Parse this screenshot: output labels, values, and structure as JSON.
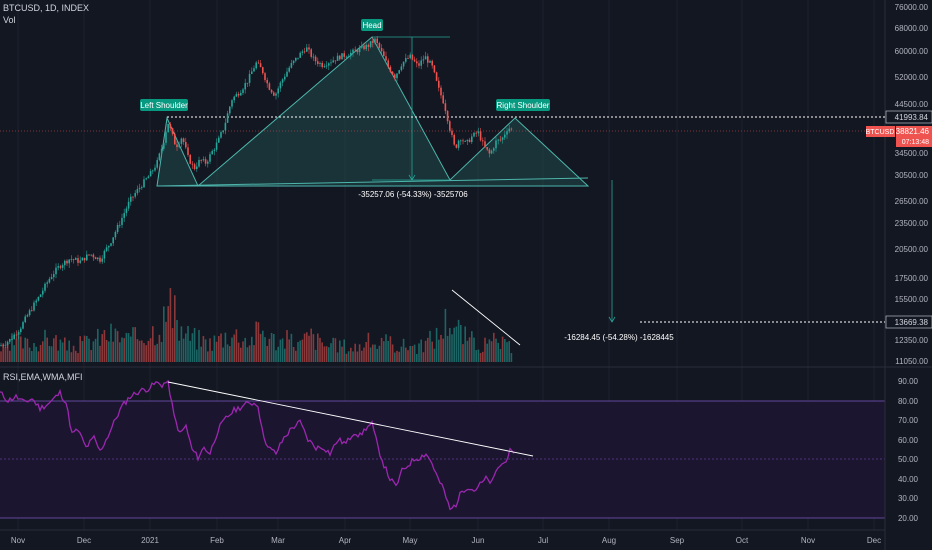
{
  "header": {
    "symbol_line": "BTCUSD, 1D, INDEX",
    "vol_label": "Vol",
    "rsi_label": "RSI,EMA,WMA,MFI"
  },
  "price_axis": {
    "ticks": [
      "76000.00",
      "68000.00",
      "60000.00",
      "52000.00",
      "44500.00",
      "34500.00",
      "30500.00",
      "26500.00",
      "23500.00",
      "20500.00",
      "17500.00",
      "15500.00",
      "12350.00",
      "11050.00"
    ],
    "level_high": "41993.84",
    "level_low": "13669.38",
    "symbol_tag": "BTCUSD",
    "last_price": "38821.46",
    "countdown": "07:13:48"
  },
  "rsi_axis": {
    "ticks": [
      "90.00",
      "80.00",
      "70.00",
      "60.00",
      "50.00",
      "40.00",
      "30.00",
      "20.00"
    ]
  },
  "time_axis": {
    "labels": [
      "Nov",
      "Dec",
      "2021",
      "Feb",
      "Mar",
      "Apr",
      "May",
      "Jun",
      "Jul",
      "Aug",
      "Sep",
      "Oct",
      "Nov",
      "Dec"
    ]
  },
  "annotations": {
    "left_shoulder": "Left Shoulder",
    "head": "Head",
    "right_shoulder": "Right Shoulder",
    "measure_top": "-35257.06 (-54.33%) -3525706",
    "measure_bottom": "-16284.45 (-54.28%) -1628445"
  },
  "colors": {
    "background": "#131722",
    "up": "#26a69a",
    "down": "#ef5350",
    "pattern_fill": "#1f4a4a",
    "pattern_stroke": "#4db6ac",
    "rsi_line": "#9c27b0",
    "rsi_band": "#1c1530",
    "label_bg": "#089981"
  },
  "chart_data": {
    "type": "candlestick",
    "price_path": [
      [
        0,
        12000
      ],
      [
        10,
        12400
      ],
      [
        20,
        13200
      ],
      [
        30,
        14500
      ],
      [
        40,
        15800
      ],
      [
        50,
        17400
      ],
      [
        60,
        18600
      ],
      [
        70,
        19300
      ],
      [
        80,
        19000
      ],
      [
        90,
        19800
      ],
      [
        100,
        19200
      ],
      [
        110,
        21000
      ],
      [
        120,
        23500
      ],
      [
        130,
        26500
      ],
      [
        140,
        28500
      ],
      [
        150,
        30500
      ],
      [
        157,
        32500
      ],
      [
        163,
        36000
      ],
      [
        168,
        40500
      ],
      [
        172,
        38000
      ],
      [
        176,
        35500
      ],
      [
        182,
        37500
      ],
      [
        188,
        33500
      ],
      [
        194,
        31500
      ],
      [
        200,
        33000
      ],
      [
        206,
        32500
      ],
      [
        212,
        34500
      ],
      [
        218,
        36500
      ],
      [
        224,
        39500
      ],
      [
        232,
        46000
      ],
      [
        240,
        48000
      ],
      [
        248,
        51000
      ],
      [
        256,
        56000
      ],
      [
        262,
        54000
      ],
      [
        268,
        49500
      ],
      [
        275,
        47000
      ],
      [
        282,
        51000
      ],
      [
        290,
        55000
      ],
      [
        298,
        58000
      ],
      [
        306,
        61000
      ],
      [
        314,
        57000
      ],
      [
        322,
        55500
      ],
      [
        330,
        56500
      ],
      [
        340,
        58000
      ],
      [
        350,
        59000
      ],
      [
        360,
        60500
      ],
      [
        368,
        61500
      ],
      [
        375,
        63500
      ],
      [
        382,
        59000
      ],
      [
        388,
        55000
      ],
      [
        395,
        52000
      ],
      [
        402,
        56000
      ],
      [
        410,
        58000
      ],
      [
        418,
        55000
      ],
      [
        425,
        58000
      ],
      [
        432,
        55000
      ],
      [
        438,
        49000
      ],
      [
        444,
        45000
      ],
      [
        450,
        39000
      ],
      [
        455,
        35000
      ],
      [
        460,
        37500
      ],
      [
        466,
        36000
      ],
      [
        472,
        37500
      ],
      [
        478,
        38500
      ],
      [
        484,
        35500
      ],
      [
        490,
        34000
      ],
      [
        496,
        36500
      ],
      [
        502,
        37000
      ],
      [
        508,
        39500
      ],
      [
        512,
        38821
      ]
    ],
    "rsi_path": [
      [
        0,
        84
      ],
      [
        8,
        80
      ],
      [
        16,
        82
      ],
      [
        24,
        79
      ],
      [
        32,
        81
      ],
      [
        40,
        76
      ],
      [
        50,
        79
      ],
      [
        60,
        84
      ],
      [
        66,
        79
      ],
      [
        72,
        63
      ],
      [
        78,
        65
      ],
      [
        86,
        56
      ],
      [
        94,
        61
      ],
      [
        100,
        54
      ],
      [
        108,
        62
      ],
      [
        116,
        71
      ],
      [
        122,
        77
      ],
      [
        130,
        82
      ],
      [
        140,
        85
      ],
      [
        148,
        86
      ],
      [
        156,
        89
      ],
      [
        162,
        88
      ],
      [
        168,
        90
      ],
      [
        174,
        72
      ],
      [
        180,
        63
      ],
      [
        186,
        67
      ],
      [
        192,
        55
      ],
      [
        198,
        51
      ],
      [
        204,
        56
      ],
      [
        210,
        53
      ],
      [
        218,
        65
      ],
      [
        226,
        71
      ],
      [
        234,
        75
      ],
      [
        242,
        77
      ],
      [
        250,
        79
      ],
      [
        258,
        78
      ],
      [
        262,
        65
      ],
      [
        268,
        56
      ],
      [
        276,
        53
      ],
      [
        284,
        61
      ],
      [
        292,
        66
      ],
      [
        300,
        69
      ],
      [
        308,
        60
      ],
      [
        316,
        56
      ],
      [
        324,
        56
      ],
      [
        330,
        53
      ],
      [
        338,
        60
      ],
      [
        346,
        58
      ],
      [
        354,
        64
      ],
      [
        360,
        62
      ],
      [
        366,
        66
      ],
      [
        372,
        68
      ],
      [
        378,
        56
      ],
      [
        384,
        47
      ],
      [
        390,
        40
      ],
      [
        396,
        36
      ],
      [
        402,
        44
      ],
      [
        408,
        47
      ],
      [
        414,
        50
      ],
      [
        420,
        51
      ],
      [
        426,
        53
      ],
      [
        432,
        48
      ],
      [
        438,
        40
      ],
      [
        444,
        34
      ],
      [
        450,
        24
      ],
      [
        456,
        27
      ],
      [
        462,
        34
      ],
      [
        468,
        36
      ],
      [
        474,
        34
      ],
      [
        480,
        37
      ],
      [
        486,
        40
      ],
      [
        492,
        38
      ],
      [
        498,
        46
      ],
      [
        504,
        48
      ],
      [
        510,
        54
      ],
      [
        515,
        51
      ]
    ],
    "volume_bars": [
      [
        10,
        25
      ],
      [
        30,
        22
      ],
      [
        50,
        30
      ],
      [
        70,
        18
      ],
      [
        90,
        26
      ],
      [
        110,
        35
      ],
      [
        130,
        28
      ],
      [
        150,
        38
      ],
      [
        160,
        45
      ],
      [
        170,
        70
      ],
      [
        180,
        40
      ],
      [
        190,
        32
      ],
      [
        200,
        28
      ],
      [
        210,
        24
      ],
      [
        220,
        30
      ],
      [
        230,
        36
      ],
      [
        240,
        33
      ],
      [
        250,
        26
      ],
      [
        260,
        42
      ],
      [
        270,
        30
      ],
      [
        280,
        26
      ],
      [
        290,
        28
      ],
      [
        300,
        22
      ],
      [
        310,
        34
      ],
      [
        320,
        24
      ],
      [
        330,
        20
      ],
      [
        340,
        22
      ],
      [
        350,
        18
      ],
      [
        360,
        20
      ],
      [
        370,
        26
      ],
      [
        380,
        22
      ],
      [
        390,
        24
      ],
      [
        400,
        20
      ],
      [
        410,
        22
      ],
      [
        420,
        18
      ],
      [
        430,
        28
      ],
      [
        440,
        35
      ],
      [
        448,
        58
      ],
      [
        452,
        50
      ],
      [
        458,
        42
      ],
      [
        464,
        32
      ],
      [
        470,
        28
      ],
      [
        476,
        24
      ],
      [
        482,
        22
      ],
      [
        488,
        20
      ],
      [
        494,
        26
      ],
      [
        500,
        24
      ],
      [
        506,
        20
      ],
      [
        512,
        16
      ]
    ],
    "price_range": [
      11050,
      76000
    ],
    "rsi_range": [
      20,
      90
    ],
    "pattern": "head-and-shoulders",
    "trendlines": true
  }
}
